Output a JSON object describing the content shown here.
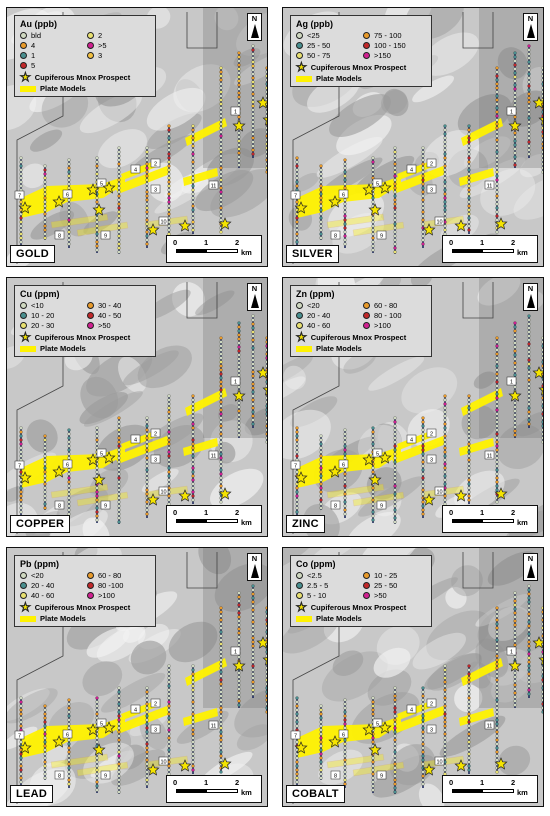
{
  "legend_common": {
    "prospect_label": "Cupiferous Mnox Prospect",
    "plate_label": "Plate Models"
  },
  "scale_bar": {
    "ticks": [
      "0",
      "1",
      "2"
    ],
    "unit": "km"
  },
  "north_label": "N",
  "plate_labels": [
    "1",
    "2",
    "3",
    "4",
    "5",
    "6",
    "7",
    "8",
    "9",
    "10",
    "11"
  ],
  "colors": {
    "plate": "#fff200",
    "star": "#f5e400",
    "line": "#1e2a5e"
  },
  "panels": [
    {
      "element": "GOLD",
      "legend_title": "Au (ppb)",
      "bins": [
        {
          "label": "bld",
          "color": "#cfd8c0"
        },
        {
          "label": "2",
          "color": "#e8e070"
        },
        {
          "label": "4",
          "color": "#e89a2a"
        },
        {
          "label": ">5",
          "color": "#d02090"
        },
        {
          "label": "1",
          "color": "#4a8f8f"
        },
        {
          "label": "3",
          "color": "#f2c040"
        },
        {
          "label": "5",
          "color": "#c0282a"
        }
      ]
    },
    {
      "element": "SILVER",
      "legend_title": "Ag (ppb)",
      "bins": [
        {
          "label": "<25",
          "color": "#cfd8c0"
        },
        {
          "label": "75 - 100",
          "color": "#e89a2a"
        },
        {
          "label": "25 - 50",
          "color": "#4a8f8f"
        },
        {
          "label": "100 - 150",
          "color": "#c0282a"
        },
        {
          "label": "50 - 75",
          "color": "#e8e070"
        },
        {
          "label": ">150",
          "color": "#d02090"
        }
      ]
    },
    {
      "element": "COPPER",
      "legend_title": "Cu (ppm)",
      "bins": [
        {
          "label": "<10",
          "color": "#cfd8c0"
        },
        {
          "label": "30 - 40",
          "color": "#e89a2a"
        },
        {
          "label": "10 - 20",
          "color": "#4a8f8f"
        },
        {
          "label": "40 - 50",
          "color": "#c0282a"
        },
        {
          "label": "20 - 30",
          "color": "#e8e070"
        },
        {
          "label": ">50",
          "color": "#d02090"
        }
      ]
    },
    {
      "element": "ZINC",
      "legend_title": "Zn (ppm)",
      "bins": [
        {
          "label": "<20",
          "color": "#cfd8c0"
        },
        {
          "label": "60 - 80",
          "color": "#e89a2a"
        },
        {
          "label": "20 - 40",
          "color": "#4a8f8f"
        },
        {
          "label": "80 - 100",
          "color": "#c0282a"
        },
        {
          "label": "40 - 60",
          "color": "#e8e070"
        },
        {
          "label": ">100",
          "color": "#d02090"
        }
      ]
    },
    {
      "element": "LEAD",
      "legend_title": "Pb (ppm)",
      "bins": [
        {
          "label": "<20",
          "color": "#cfd8c0"
        },
        {
          "label": "60 - 80",
          "color": "#e89a2a"
        },
        {
          "label": "20 - 40",
          "color": "#4a8f8f"
        },
        {
          "label": "80 -100",
          "color": "#c0282a"
        },
        {
          "label": "40 - 60",
          "color": "#e8e070"
        },
        {
          "label": ">100",
          "color": "#d02090"
        }
      ]
    },
    {
      "element": "COBALT",
      "legend_title": "Co (ppm)",
      "bins": [
        {
          "label": "<2.5",
          "color": "#cfd8c0"
        },
        {
          "label": "10 - 25",
          "color": "#e89a2a"
        },
        {
          "label": "2.5 - 5",
          "color": "#4a8f8f"
        },
        {
          "label": "25 - 50",
          "color": "#c0282a"
        },
        {
          "label": "5 - 10",
          "color": "#e8e070"
        },
        {
          "label": ">50",
          "color": "#d02090"
        }
      ]
    }
  ]
}
